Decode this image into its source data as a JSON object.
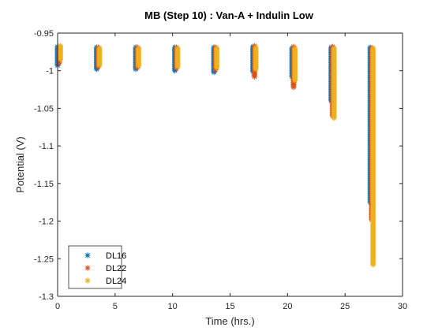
{
  "chart_data": {
    "type": "scatter",
    "title": "MB (Step 10) : Van-A + Indulin Low",
    "xlabel": "Time (hrs.)",
    "ylabel": "Potential (V)",
    "xlim": [
      0,
      30
    ],
    "ylim": [
      -1.3,
      -0.95
    ],
    "xticks": [
      0,
      5,
      10,
      15,
      20,
      25,
      30
    ],
    "xtick_labels": [
      "0",
      "5",
      "10",
      "15",
      "20",
      "25",
      "30"
    ],
    "yticks": [
      -0.95,
      -1,
      -1.05,
      -1.1,
      -1.15,
      -1.2,
      -1.25,
      -1.3
    ],
    "ytick_labels": [
      "-0.95",
      "-1",
      "-1.05",
      "-1.1",
      "-1.15",
      "-1.2",
      "-1.25",
      "-1.3"
    ],
    "grid": false,
    "legend": {
      "placement": "bottom-left",
      "marker": "*"
    },
    "series": [
      {
        "name": "DL16",
        "color": "#0072BD",
        "groups": [
          {
            "x": 0.0,
            "y_top": -0.968,
            "y_bottom": -0.993
          },
          {
            "x": 3.4,
            "y_top": -0.969,
            "y_bottom": -0.998
          },
          {
            "x": 6.8,
            "y_top": -0.969,
            "y_bottom": -0.998
          },
          {
            "x": 10.2,
            "y_top": -0.969,
            "y_bottom": -1.0
          },
          {
            "x": 13.6,
            "y_top": -0.969,
            "y_bottom": -1.002
          },
          {
            "x": 17.0,
            "y_top": -0.968,
            "y_bottom": -1.001
          },
          {
            "x": 20.4,
            "y_top": -0.97,
            "y_bottom": -1.008
          },
          {
            "x": 23.8,
            "y_top": -0.969,
            "y_bottom": -1.04
          },
          {
            "x": 27.2,
            "y_top": -0.969,
            "y_bottom": -1.175
          }
        ]
      },
      {
        "name": "DL22",
        "color": "#D95319",
        "groups": [
          {
            "x": 0.0,
            "y_top": -0.968,
            "y_bottom": -0.99
          },
          {
            "x": 3.4,
            "y_top": -0.969,
            "y_bottom": -0.995
          },
          {
            "x": 6.8,
            "y_top": -0.969,
            "y_bottom": -0.996
          },
          {
            "x": 10.2,
            "y_top": -0.969,
            "y_bottom": -0.997
          },
          {
            "x": 13.6,
            "y_top": -0.969,
            "y_bottom": -0.999
          },
          {
            "x": 17.0,
            "y_top": -0.967,
            "y_bottom": -1.008
          },
          {
            "x": 20.4,
            "y_top": -0.968,
            "y_bottom": -1.022
          },
          {
            "x": 23.8,
            "y_top": -0.968,
            "y_bottom": -1.06
          },
          {
            "x": 27.2,
            "y_top": -0.97,
            "y_bottom": -1.198
          }
        ]
      },
      {
        "name": "DL24",
        "color": "#EDB120",
        "groups": [
          {
            "x": 0.0,
            "y_top": -0.967,
            "y_bottom": -0.985
          },
          {
            "x": 3.4,
            "y_top": -0.97,
            "y_bottom": -0.993
          },
          {
            "x": 6.8,
            "y_top": -0.97,
            "y_bottom": -0.994
          },
          {
            "x": 10.2,
            "y_top": -0.97,
            "y_bottom": -0.995
          },
          {
            "x": 13.6,
            "y_top": -0.97,
            "y_bottom": -0.996
          },
          {
            "x": 17.0,
            "y_top": -0.969,
            "y_bottom": -0.998
          },
          {
            "x": 20.4,
            "y_top": -0.97,
            "y_bottom": -1.013
          },
          {
            "x": 23.8,
            "y_top": -0.97,
            "y_bottom": -1.063
          },
          {
            "x": 27.2,
            "y_top": -0.97,
            "y_bottom": -1.258
          }
        ]
      }
    ]
  }
}
